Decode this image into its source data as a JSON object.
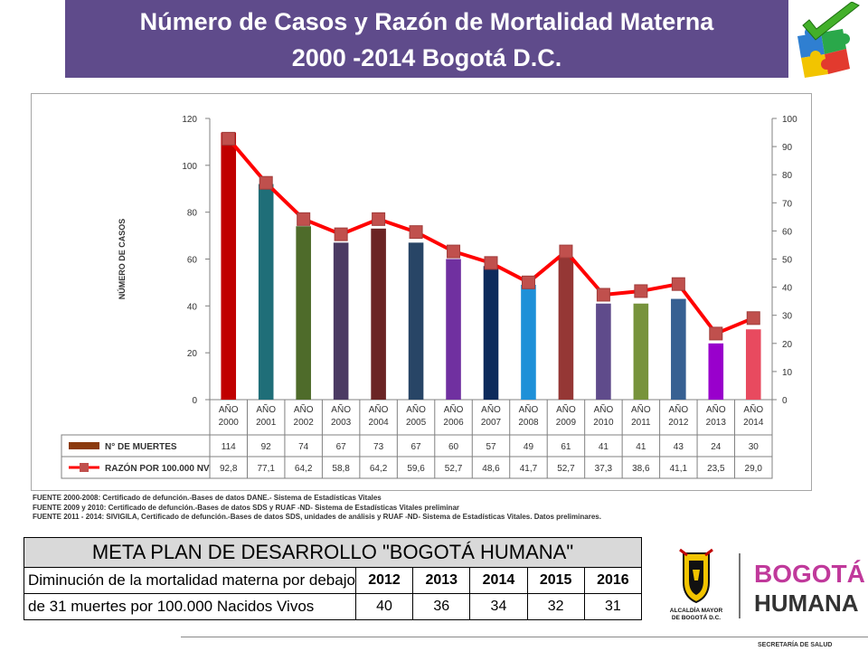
{
  "title": {
    "line1": "Número de Casos y Razón de Mortalidad Materna",
    "line2": "2000 -2014 Bogotá D.C."
  },
  "chart_data": {
    "type": "bar",
    "categories": [
      "AÑO 2000",
      "AÑO 2001",
      "AÑO 2002",
      "AÑO 2003",
      "AÑO 2004",
      "AÑO 2005",
      "AÑO 2006",
      "AÑO 2007",
      "AÑO 2008",
      "AÑO 2009",
      "AÑO 2010",
      "AÑO 2011",
      "AÑO 2012",
      "AÑO 2013",
      "AÑO 2014"
    ],
    "category_lines": [
      [
        "AÑO",
        "2000"
      ],
      [
        "AÑO",
        "2001"
      ],
      [
        "AÑO",
        "2002"
      ],
      [
        "AÑO",
        "2003"
      ],
      [
        "AÑO",
        "2004"
      ],
      [
        "AÑO",
        "2005"
      ],
      [
        "AÑO",
        "2006"
      ],
      [
        "AÑO",
        "2007"
      ],
      [
        "AÑO",
        "2008"
      ],
      [
        "AÑO",
        "2009"
      ],
      [
        "AÑO",
        "2010"
      ],
      [
        "AÑO",
        "2011"
      ],
      [
        "AÑO",
        "2012"
      ],
      [
        "AÑO",
        "2013"
      ],
      [
        "AÑO",
        "2014"
      ]
    ],
    "ylabel": "NÚMERO DE CASOS",
    "ylim": [
      0,
      120
    ],
    "yticks": [
      0,
      20,
      40,
      60,
      80,
      100,
      120
    ],
    "y2lim": [
      0,
      100
    ],
    "y2ticks": [
      0,
      10,
      20,
      30,
      40,
      50,
      60,
      70,
      80,
      90,
      100
    ],
    "grid": false,
    "legend": "table-below",
    "series": [
      {
        "name": "N° DE MUERTES",
        "type": "bar",
        "axis": "left",
        "values": [
          114,
          92,
          74,
          67,
          73,
          67,
          60,
          57,
          49,
          61,
          41,
          41,
          43,
          24,
          30
        ],
        "labels": [
          "114",
          "92",
          "74",
          "67",
          "73",
          "67",
          "60",
          "57",
          "49",
          "61",
          "41",
          "41",
          "43",
          "24",
          "30"
        ],
        "legend_color": "#8b3a0e",
        "colors": [
          "#c00000",
          "#1f6e78",
          "#4e6b2a",
          "#4b3a63",
          "#6b2424",
          "#284566",
          "#7030a0",
          "#0d2b5c",
          "#1e90d8",
          "#953735",
          "#5f4b8b",
          "#77933c",
          "#376092",
          "#9900cc",
          "#e84a5f"
        ]
      },
      {
        "name": "RAZÓN POR 100.000 NV",
        "type": "line",
        "axis": "right",
        "values": [
          92.8,
          77.1,
          64.2,
          58.8,
          64.2,
          59.6,
          52.7,
          48.6,
          41.7,
          52.7,
          37.3,
          38.6,
          41.1,
          23.5,
          29.0
        ],
        "labels": [
          "92,8",
          "77,1",
          "64,2",
          "58,8",
          "64,2",
          "59,6",
          "52,7",
          "48,6",
          "41,7",
          "52,7",
          "37,3",
          "38,6",
          "41,1",
          "23,5",
          "29,0"
        ],
        "line_color": "#ff0000",
        "marker_color": "#c0504d"
      }
    ]
  },
  "sources": [
    "FUENTE 2000-2008:  Certificado de defunción.-Bases de datos DANE.-  Sistema de Estadísticas Vitales",
    "FUENTE 2009 y 2010: Certificado de defunción.-Bases de datos SDS y RUAF -ND- Sistema de Estadísticas Vitales preliminar",
    "FUENTE  2011 - 2014:  SIVIGILA, Certificado de defunción.-Bases de datos SDS, unidades de análisis  y RUAF -ND- Sistema de Estadísticas Vitales.  Datos preliminares."
  ],
  "meta": {
    "header": "META PLAN DE DESARROLLO \"BOGOTÁ HUMANA\"",
    "desc1": "Diminución de la mortalidad materna por debajo",
    "desc2": "de 31 muertes por 100.000 Nacidos Vivos",
    "years": [
      "2012",
      "2013",
      "2014",
      "2015",
      "2016"
    ],
    "values": [
      "40",
      "36",
      "34",
      "32",
      "31"
    ]
  },
  "logos": {
    "alcaldia_line1": "ALCALDÍA MAYOR",
    "alcaldia_line2": "DE BOGOTÁ D.C.",
    "bogota": "BOGOTÁ",
    "humana": "HUMANA"
  },
  "footer": "SECRETARÍA DE SALUD"
}
